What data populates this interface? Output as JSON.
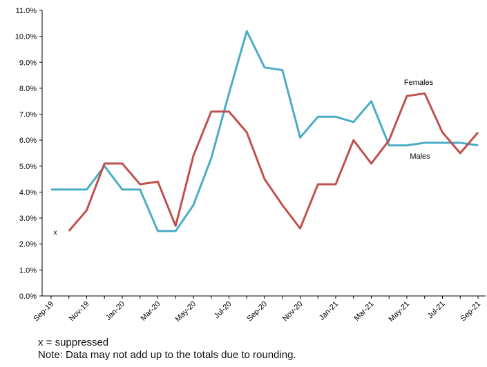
{
  "chart_data": {
    "type": "line",
    "categories": [
      "Sep-19",
      null,
      "Nov-19",
      null,
      "Jan-20",
      null,
      "Mar-20",
      null,
      "May-20",
      null,
      "Jul-20",
      null,
      "Sep-20",
      null,
      "Nov-20",
      null,
      "Jan-21",
      null,
      "Mar-21",
      null,
      "May-21",
      null,
      "Jul-21",
      null,
      "Sep-21"
    ],
    "series": [
      {
        "name": "Males",
        "color": "#4bacc6",
        "values": [
          4.1,
          4.1,
          4.1,
          5.0,
          4.1,
          4.1,
          2.5,
          2.5,
          3.5,
          5.3,
          7.8,
          10.2,
          8.8,
          8.7,
          6.1,
          6.9,
          6.9,
          6.7,
          7.5,
          5.8,
          5.8,
          5.9,
          5.9,
          5.9,
          5.8
        ]
      },
      {
        "name": "Females",
        "color": "#c0504d",
        "values": [
          null,
          2.5,
          3.3,
          5.1,
          5.1,
          4.3,
          4.4,
          2.7,
          5.4,
          7.1,
          7.1,
          6.3,
          4.5,
          3.5,
          2.6,
          4.3,
          4.3,
          6.0,
          5.1,
          6.0,
          7.7,
          7.8,
          6.3,
          5.5,
          6.3
        ]
      }
    ],
    "ylim": [
      0,
      11
    ],
    "yticks": [
      {
        "value": 0,
        "label": "0.0%"
      },
      {
        "value": 1,
        "label": "1.0%"
      },
      {
        "value": 2,
        "label": "2.0%"
      },
      {
        "value": 3,
        "label": "3.0%"
      },
      {
        "value": 4,
        "label": "4.0%"
      },
      {
        "value": 5,
        "label": "5.0%"
      },
      {
        "value": 6,
        "label": "6.0%"
      },
      {
        "value": 7,
        "label": "7.0%"
      },
      {
        "value": 8,
        "label": "8.0%"
      },
      {
        "value": 9,
        "label": "9.0%"
      },
      {
        "value": 10,
        "label": "10.0%"
      },
      {
        "value": 11,
        "label": "11.0%"
      }
    ],
    "grid": false,
    "annotations": [
      "x"
    ],
    "notes": [
      "x = suppressed",
      "Note: Data may not add up to the totals due to rounding."
    ]
  }
}
